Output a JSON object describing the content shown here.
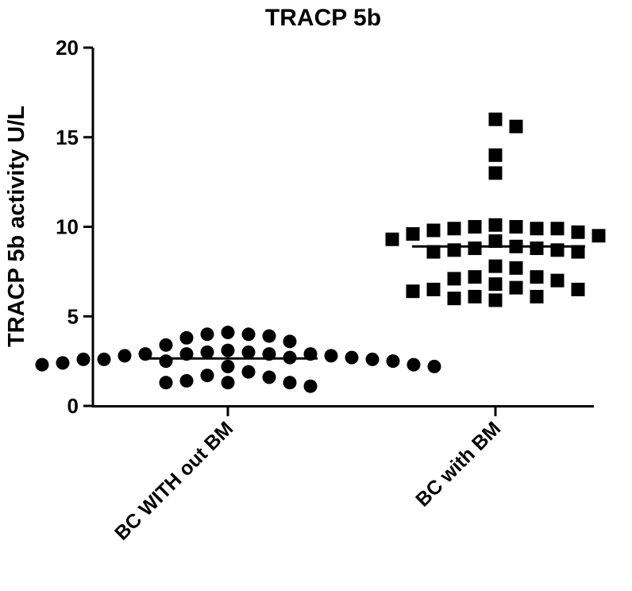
{
  "chart_data": {
    "type": "scatter",
    "title": "TRACP 5b",
    "xlabel": "",
    "ylabel": "TRACP 5b activity U/L",
    "ylim": [
      0,
      20
    ],
    "yticks": [
      0,
      5,
      10,
      15,
      20
    ],
    "grid": false,
    "legend": "none",
    "categories": [
      "BC WITH out BM",
      "BC with BM"
    ],
    "series": [
      {
        "category": "BC WITH out BM",
        "marker": "circle",
        "mean": 2.65,
        "values": [
          4.1,
          4.0,
          4.0,
          3.9,
          3.8,
          3.6,
          3.4,
          3.1,
          3.0,
          3.0,
          2.9,
          2.9,
          2.9,
          2.9,
          2.8,
          2.8,
          2.7,
          2.7,
          2.6,
          2.6,
          2.6,
          2.5,
          2.5,
          2.4,
          2.3,
          2.3,
          2.2,
          2.2,
          1.9,
          1.7,
          1.6,
          1.4,
          1.3,
          1.3,
          1.3,
          1.1
        ]
      },
      {
        "category": "BC with BM",
        "marker": "square",
        "mean": 8.9,
        "values": [
          16.0,
          15.6,
          14.0,
          13.0,
          10.1,
          10.0,
          10.0,
          9.9,
          9.9,
          9.9,
          9.8,
          9.7,
          9.6,
          9.5,
          9.3,
          9.2,
          8.9,
          8.8,
          8.8,
          8.7,
          8.7,
          8.6,
          8.6,
          7.8,
          7.7,
          7.2,
          7.2,
          7.1,
          7.0,
          6.8,
          6.6,
          6.5,
          6.5,
          6.4,
          6.1,
          6.1,
          6.0,
          5.9
        ]
      }
    ]
  }
}
